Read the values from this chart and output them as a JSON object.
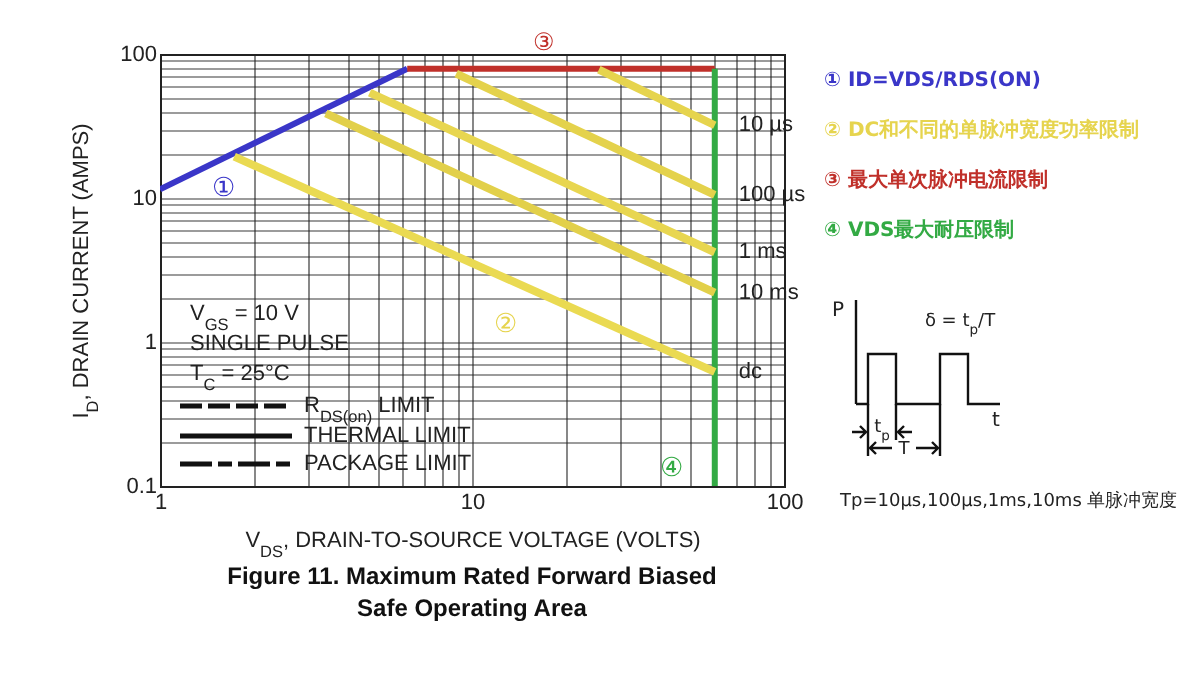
{
  "chart_data": {
    "type": "line",
    "title": "Figure 11. Maximum Rated Forward Biased\nSafe Operating Area",
    "xlabel": "V$_{DS}$, DRAIN-TO-SOURCE VOLTAGE (VOLTS)",
    "ylabel": "I$_{D}$, DRAIN CURRENT (AMPS)",
    "log": "xy",
    "grid": true,
    "xlim": [
      1,
      100
    ],
    "ylim": [
      0.1,
      100
    ],
    "xticks": [
      1,
      {
        "value": 2,
        "label": null
      },
      {
        "value": 3,
        "label": null
      },
      {
        "value": 4,
        "label": null
      },
      {
        "value": 5,
        "label": null
      },
      {
        "value": 6,
        "label": null
      },
      {
        "value": 7,
        "label": null
      },
      {
        "value": 8,
        "label": null
      },
      {
        "value": 9,
        "label": null
      },
      10,
      {
        "value": 20,
        "label": null
      },
      {
        "value": 30,
        "label": null
      },
      {
        "value": 40,
        "label": null
      },
      {
        "value": 50,
        "label": null
      },
      {
        "value": 60,
        "label": null
      },
      {
        "value": 70,
        "label": null
      },
      {
        "value": 80,
        "label": null
      },
      {
        "value": 90,
        "label": null
      },
      100
    ],
    "yticks": [
      0.1,
      {
        "value": 0.2,
        "label": null
      },
      {
        "value": 0.3,
        "label": null
      },
      {
        "value": 0.4,
        "label": null
      },
      {
        "value": 0.5,
        "label": null
      },
      {
        "value": 0.6,
        "label": null
      },
      {
        "value": 0.7,
        "label": null
      },
      {
        "value": 0.8,
        "label": null
      },
      {
        "value": 0.9,
        "label": null
      },
      1,
      {
        "value": 2,
        "label": null
      },
      {
        "value": 3,
        "label": null
      },
      {
        "value": 4,
        "label": null
      },
      {
        "value": 5,
        "label": null
      },
      {
        "value": 6,
        "label": null
      },
      {
        "value": 7,
        "label": null
      },
      {
        "value": 8,
        "label": null
      },
      {
        "value": 9,
        "label": null
      },
      10,
      {
        "value": 20,
        "label": null
      },
      {
        "value": 30,
        "label": null
      },
      {
        "value": 40,
        "label": null
      },
      {
        "value": 50,
        "label": null
      },
      {
        "value": 60,
        "label": null
      },
      {
        "value": 70,
        "label": null
      },
      {
        "value": 80,
        "label": null
      },
      {
        "value": 90,
        "label": null
      },
      100
    ],
    "series": [
      {
        "color": "#3a36c8",
        "x": [
          1,
          6.2
        ],
        "values": [
          11.5,
          79
        ]
      },
      {
        "color": "#c0302a",
        "x": [
          6.2,
          60
        ],
        "values": [
          79,
          79
        ]
      },
      {
        "color": "#33aa44",
        "x": [
          60,
          60
        ],
        "values": [
          0.1,
          79
        ]
      },
      {
        "name": "10 µs",
        "color": "#e6d44e",
        "x": [
          25.5,
          60
        ],
        "values": [
          78,
          32
        ]
      },
      {
        "name": "100 µs",
        "color": "#e4d24c",
        "x": [
          8.9,
          60
        ],
        "values": [
          73,
          10.5
        ]
      },
      {
        "name": "1 ms",
        "color": "#e8d650",
        "x": [
          4.7,
          60
        ],
        "values": [
          54,
          4.2
        ]
      },
      {
        "name": "10 ms",
        "color": "#e2d04a",
        "x": [
          3.4,
          60
        ],
        "values": [
          38.7,
          2.2
        ]
      },
      {
        "name": "dc",
        "color": "#eada52",
        "x": [
          1.73,
          60
        ],
        "values": [
          19.4,
          0.62
        ]
      }
    ],
    "annotations": [
      "①",
      "②",
      "③",
      "④",
      "V$_{GS}$ = 10 V",
      "SINGLE PULSE",
      "T$_{C}$ = 25°C",
      "R$_{DS(on)}$ LIMIT",
      "THERMAL LIMIT",
      "PACKAGE LIMIT",
      "① ID=VDS/RDS(ON)",
      "② DC和不同的单脉冲宽度功率限制",
      "③ 最大单次脉冲电流限制",
      "④ VDS最大耐压限制",
      "P",
      "δ = t$_{p}$/T",
      "t",
      "t$_{p}$",
      "T",
      "Tp=10µs,100µs,1ms,10ms 单脉冲宽度"
    ]
  }
}
